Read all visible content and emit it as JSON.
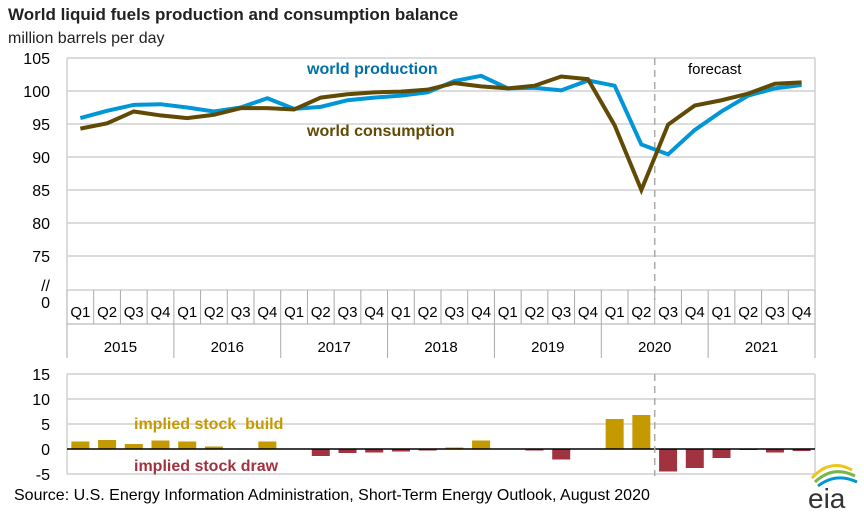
{
  "title": "World liquid fuels production and consumption balance",
  "subtitle": "million barrels per day",
  "source": "Source: U.S. Energy Information Administration, Short-Term Energy Outlook, August 2020",
  "logo_text": "eia",
  "colors": {
    "production": "#0096d7",
    "consumption": "#614a05",
    "build": "#c49a00",
    "draw": "#a13340",
    "production_label": "#0070a8"
  },
  "chart_data": [
    {
      "type": "line",
      "ylim": [
        70,
        105
      ],
      "yticks": [
        "105",
        "100",
        "95",
        "90",
        "85",
        "80",
        "75",
        "//",
        "0"
      ],
      "axis_break": true,
      "grid": true,
      "quarters": [
        "Q1",
        "Q2",
        "Q3",
        "Q4",
        "Q1",
        "Q2",
        "Q3",
        "Q4",
        "Q1",
        "Q2",
        "Q3",
        "Q4",
        "Q1",
        "Q2",
        "Q3",
        "Q4",
        "Q1",
        "Q2",
        "Q3",
        "Q4",
        "Q1",
        "Q2",
        "Q3",
        "Q4",
        "Q1",
        "Q2",
        "Q3",
        "Q4"
      ],
      "years": [
        "2015",
        "2016",
        "2017",
        "2018",
        "2019",
        "2020",
        "2021"
      ],
      "forecast_label": "forecast",
      "forecast_start_index": 22,
      "series": [
        {
          "name": "world production",
          "values": [
            95.9,
            97.0,
            97.9,
            98.0,
            97.5,
            96.9,
            97.5,
            98.9,
            97.3,
            97.6,
            98.6,
            99.0,
            99.3,
            99.8,
            101.5,
            102.3,
            100.4,
            100.5,
            100.1,
            101.6,
            100.8,
            91.9,
            90.4,
            94.1,
            96.9,
            99.3,
            100.4,
            100.9
          ]
        },
        {
          "name": "world consumption",
          "values": [
            94.3,
            95.1,
            96.9,
            96.3,
            95.9,
            96.4,
            97.4,
            97.4,
            97.2,
            99.0,
            99.5,
            99.8,
            99.9,
            100.2,
            101.2,
            100.7,
            100.4,
            100.8,
            102.2,
            101.8,
            94.8,
            85.0,
            94.9,
            97.8,
            98.6,
            99.6,
            101.1,
            101.3
          ]
        }
      ]
    },
    {
      "type": "bar",
      "ylim": [
        -5,
        15
      ],
      "yticks": [
        "15",
        "10",
        "5",
        "0",
        "-5"
      ],
      "grid": true,
      "legend": {
        "build": "implied stock  build",
        "draw": "implied stock draw"
      },
      "values": [
        1.5,
        1.8,
        1.0,
        1.7,
        1.5,
        0.5,
        0.0,
        1.5,
        0.0,
        -1.4,
        -0.8,
        -0.7,
        -0.5,
        -0.3,
        0.3,
        1.7,
        0.0,
        -0.3,
        -2.1,
        0.0,
        6.0,
        6.8,
        -4.5,
        -3.8,
        -1.8,
        -0.2,
        -0.7,
        -0.4
      ]
    }
  ]
}
